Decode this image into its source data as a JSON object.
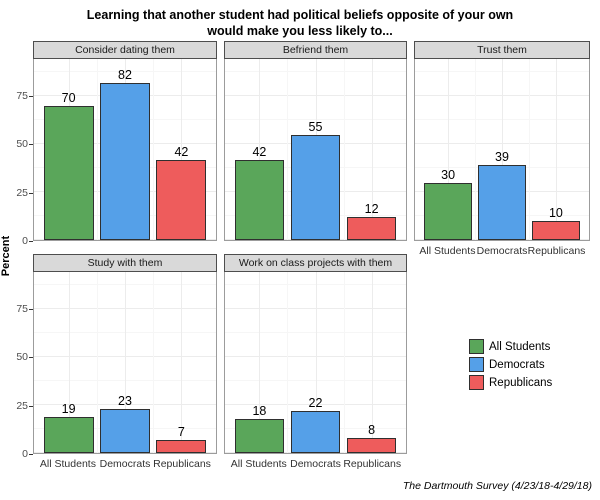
{
  "figure": {
    "title_line1": "Learning that another student had political beliefs opposite of your own",
    "title_line2": "would make you less likely to...",
    "y_axis_title": "Percent",
    "source_caption": "The Dartmouth Survey (4/23/18-4/29/18)"
  },
  "chart_data": {
    "type": "bar",
    "title": "Learning that another student had political beliefs opposite of your own would make you less likely to...",
    "ylabel": "Percent",
    "categories": [
      "All Students",
      "Democrats",
      "Republicans"
    ],
    "facets": [
      {
        "label": "Consider dating them",
        "values": [
          70,
          82,
          42
        ]
      },
      {
        "label": "Befriend them",
        "values": [
          42,
          55,
          12
        ]
      },
      {
        "label": "Trust them",
        "values": [
          30,
          39,
          10
        ]
      },
      {
        "label": "Study with them",
        "values": [
          19,
          23,
          7
        ]
      },
      {
        "label": "Work on class projects with them",
        "values": [
          18,
          22,
          8
        ]
      }
    ],
    "yticks": [
      0,
      25,
      50,
      75
    ],
    "ylim": [
      0,
      94
    ],
    "grid": true,
    "legend_position": "bottom-right",
    "source": "The Dartmouth Survey (4/23/18-4/29/18)"
  },
  "legend": {
    "items": [
      {
        "label": "All Students",
        "color": "#5AA65A"
      },
      {
        "label": "Democrats",
        "color": "#55A0E8"
      },
      {
        "label": "Republicans",
        "color": "#EE5C5C"
      }
    ]
  },
  "style": {
    "series_colors": [
      "#5AA65A",
      "#55A0E8",
      "#EE5C5C"
    ],
    "bar_border": "#2F2F2F",
    "strip_bg": "#D9D9D9",
    "panel_border": "#9C9C9C",
    "grid_major": "#ECECEC",
    "grid_minor": "#F6F6F6",
    "axis_text": "#4D4D4D"
  }
}
